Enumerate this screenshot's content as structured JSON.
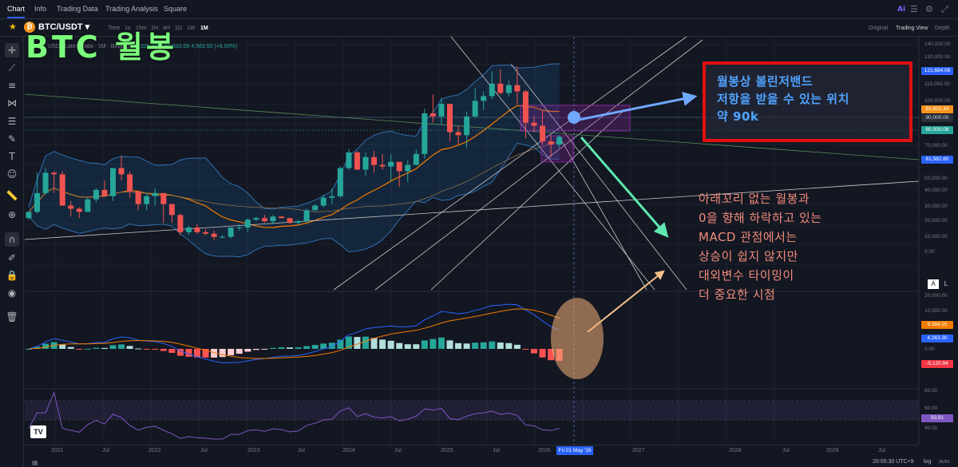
{
  "nav": {
    "tabs": [
      "Chart",
      "Info",
      "Trading Data",
      "Trading Analysis",
      "Square"
    ],
    "active_tab": "Chart",
    "ai_label": "Ai"
  },
  "symbol": {
    "pair": "BTC/USDT",
    "intervals": [
      "Time",
      "1s",
      "15m",
      "1H",
      "4H",
      "1D",
      "1W",
      "1M"
    ],
    "active_interval": "1M",
    "views": [
      "Original",
      "Trading View",
      "Depth"
    ],
    "active_view": "Trading View"
  },
  "legend": {
    "text": "USDT Latest Data · 1M · Binance",
    "values": "76,320.42  C 80,930.08  4,583.50 (+6.00%)"
  },
  "overlay": {
    "title": "BTC 월봉",
    "callout_lines": [
      "월봉상 볼린저밴드",
      "저항을 받을 수 있는 위치",
      "약 90k"
    ],
    "note_lines": [
      "아래꼬리 없는 월봉과",
      "0을 향해 하락하고 있는",
      "MACD 관점에서는",
      "상승이 쉽지 않지만",
      "대외변수 타이밍이",
      "더 중요한 시점"
    ]
  },
  "price_scale": {
    "labels": [
      "140,000.00",
      "130,000.00",
      "110,000.00",
      "100,000.00",
      "70,000.00",
      "50,000.00",
      "40,000.00",
      "30,000.00",
      "20,000.00",
      "10,000.00",
      "0.00"
    ],
    "tags": [
      {
        "value": "121,684.08",
        "color": "#2962ff"
      },
      {
        "value": "91,621.34",
        "color": "#f7931a"
      },
      {
        "value": "90,000.00",
        "color": "#2a2e39"
      },
      {
        "value": "80,930.08",
        "color": "#26a69a"
      },
      {
        "value": "61,562.60",
        "color": "#2962ff"
      }
    ]
  },
  "macd_scale": {
    "labels": [
      "20,000.00",
      "10,000.00",
      "0.00"
    ],
    "tags": [
      {
        "value": "9,384.25",
        "color": "#f57c00"
      },
      {
        "value": "4,263.30",
        "color": "#2962ff"
      },
      {
        "value": "-5,120.94",
        "color": "#f23645"
      }
    ]
  },
  "rsi_scale": {
    "labels": [
      "80.00",
      "60.00",
      "40.00"
    ],
    "tag": {
      "value": "50.91",
      "color": "#7e57c2"
    }
  },
  "time_axis": {
    "labels": [
      "2021",
      "Jul",
      "2022",
      "Jul",
      "2023",
      "Jul",
      "2024",
      "Jul",
      "2025",
      "Jul",
      "2026",
      "2027",
      "2028",
      "Jul",
      "2029",
      "Jul"
    ],
    "cursor_date": "Fri 01 May '26"
  },
  "status": {
    "time": "20:05:30 UTC+9",
    "log": "log",
    "auto": "auto"
  },
  "buttons": {
    "a": "A",
    "l": "L"
  },
  "chart_data": {
    "type": "candlestick",
    "interval": "1M",
    "pair": "BTC/USDT",
    "ohlc_approx": [
      [
        29,
        33,
        28,
        33
      ],
      [
        33,
        58,
        32,
        45
      ],
      [
        45,
        61,
        44,
        58
      ],
      [
        58,
        59,
        45,
        57
      ],
      [
        57,
        59,
        47,
        37
      ],
      [
        37,
        40,
        30,
        35
      ],
      [
        35,
        36,
        29,
        33
      ],
      [
        33,
        42,
        38,
        41
      ],
      [
        41,
        48,
        39,
        47
      ],
      [
        47,
        53,
        43,
        43
      ],
      [
        43,
        61,
        40,
        61
      ],
      [
        61,
        69,
        53,
        57
      ],
      [
        57,
        59,
        42,
        46
      ],
      [
        46,
        47,
        34,
        38
      ],
      [
        38,
        45,
        34,
        43
      ],
      [
        43,
        48,
        37,
        45
      ],
      [
        45,
        40,
        26,
        38
      ],
      [
        38,
        32,
        26,
        31
      ],
      [
        31,
        32,
        18,
        20
      ],
      [
        20,
        24,
        18,
        23
      ],
      [
        23,
        25,
        19,
        20
      ],
      [
        20,
        22,
        18,
        19
      ],
      [
        19,
        21,
        15,
        17
      ],
      [
        17,
        18,
        16,
        17
      ],
      [
        17,
        23,
        16,
        23
      ],
      [
        23,
        25,
        21,
        23
      ],
      [
        23,
        29,
        20,
        28
      ],
      [
        28,
        30,
        27,
        29
      ],
      [
        29,
        31,
        26,
        27
      ],
      [
        27,
        31,
        25,
        30
      ],
      [
        30,
        30,
        29,
        29
      ],
      [
        29,
        29,
        25,
        26
      ],
      [
        26,
        28,
        25,
        27
      ],
      [
        27,
        35,
        26,
        34
      ],
      [
        34,
        38,
        34,
        37
      ],
      [
        37,
        44,
        36,
        42
      ],
      [
        42,
        48,
        38,
        43
      ],
      [
        43,
        62,
        42,
        61
      ],
      [
        61,
        73,
        60,
        71
      ],
      [
        71,
        72,
        60,
        60
      ],
      [
        60,
        71,
        56,
        68
      ],
      [
        68,
        72,
        58,
        63
      ],
      [
        63,
        70,
        60,
        62
      ],
      [
        62,
        70,
        53,
        65
      ],
      [
        65,
        65,
        49,
        59
      ],
      [
        59,
        66,
        52,
        63
      ],
      [
        63,
        73,
        66,
        70
      ],
      [
        70,
        99,
        67,
        96
      ],
      [
        96,
        108,
        90,
        94
      ],
      [
        94,
        106,
        89,
        102
      ],
      [
        102,
        102,
        78,
        84
      ],
      [
        84,
        88,
        76,
        82
      ],
      [
        82,
        97,
        74,
        94
      ],
      [
        94,
        112,
        93,
        104
      ],
      [
        104,
        110,
        98,
        107
      ],
      [
        107,
        123,
        105,
        115
      ],
      [
        115,
        124,
        108,
        109
      ],
      [
        109,
        117,
        107,
        114
      ],
      [
        114,
        126,
        102,
        110
      ],
      [
        110,
        111,
        80,
        90
      ],
      [
        90,
        94,
        84,
        88
      ],
      [
        88,
        98,
        76,
        78
      ],
      [
        78,
        82,
        68,
        76
      ],
      [
        76,
        82,
        74,
        81
      ]
    ],
    "annotations": {
      "resistance_level": 90000,
      "last_close": 80930.08
    }
  }
}
